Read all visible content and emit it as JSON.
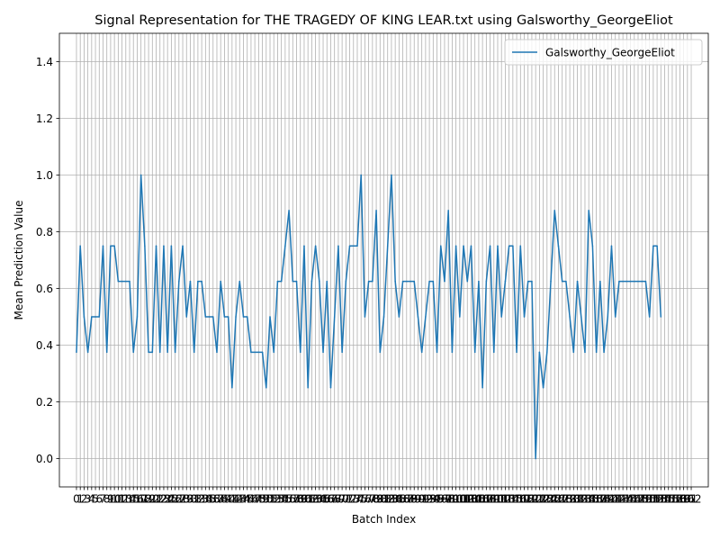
{
  "chart_data": {
    "type": "line",
    "title": "Signal Representation for THE TRAGEDY OF KING LEAR.txt using Galsworthy_GeorgeEliot",
    "xlabel": "Batch Index",
    "ylabel": "Mean Prediction Value",
    "ylim": [
      -0.1,
      1.5
    ],
    "yticks": [
      "0.0",
      "0.2",
      "0.4",
      "0.6",
      "0.8",
      "1.0",
      "1.2",
      "1.4"
    ],
    "xlim": [
      -4.5,
      166.5
    ],
    "xticks": [
      0,
      1,
      2,
      3,
      4,
      5,
      6,
      7,
      8,
      9,
      10,
      11,
      12,
      13,
      14,
      15,
      16,
      17,
      18,
      19,
      20,
      21,
      22,
      23,
      24,
      25,
      26,
      27,
      28,
      29,
      30,
      31,
      32,
      33,
      34,
      35,
      36,
      37,
      38,
      39,
      40,
      41,
      42,
      43,
      44,
      45,
      46,
      47,
      48,
      49,
      50,
      51,
      52,
      53,
      54,
      55,
      56,
      57,
      58,
      59,
      60,
      61,
      62,
      63,
      64,
      65,
      66,
      67,
      68,
      69,
      70,
      71,
      72,
      73,
      74,
      75,
      76,
      77,
      78,
      79,
      80,
      81,
      82,
      83,
      84,
      85,
      86,
      87,
      88,
      89,
      90,
      91,
      92,
      93,
      94,
      95,
      96,
      97,
      98,
      99,
      100,
      101,
      102,
      103,
      104,
      105,
      106,
      107,
      108,
      109,
      110,
      111,
      112,
      113,
      114,
      115,
      116,
      117,
      118,
      119,
      120,
      121,
      122,
      123,
      124,
      125,
      126,
      127,
      128,
      129,
      130,
      131,
      132,
      133,
      134,
      135,
      136,
      137,
      138,
      139,
      140,
      141,
      142,
      143,
      144,
      145,
      146,
      147,
      148,
      149,
      150,
      151,
      152,
      153,
      154,
      155,
      156,
      157,
      158,
      159,
      160,
      161,
      162
    ],
    "grid": true,
    "legend_position": "top-right",
    "series": [
      {
        "name": "Galsworthy_GeorgeEliot",
        "color": "#1f77b4",
        "values": [
          0.375,
          0.75,
          0.5,
          0.375,
          0.5,
          0.5,
          0.5,
          0.75,
          0.375,
          0.75,
          0.75,
          0.625,
          0.625,
          0.625,
          0.625,
          0.375,
          0.5,
          1.0,
          0.75,
          0.375,
          0.375,
          0.75,
          0.375,
          0.75,
          0.375,
          0.75,
          0.375,
          0.625,
          0.75,
          0.5,
          0.625,
          0.375,
          0.625,
          0.625,
          0.5,
          0.5,
          0.5,
          0.375,
          0.625,
          0.5,
          0.5,
          0.25,
          0.5,
          0.625,
          0.5,
          0.5,
          0.375,
          0.375,
          0.375,
          0.375,
          0.25,
          0.5,
          0.375,
          0.625,
          0.625,
          0.75,
          0.875,
          0.625,
          0.625,
          0.375,
          0.75,
          0.25,
          0.625,
          0.75,
          0.625,
          0.375,
          0.625,
          0.25,
          0.5,
          0.75,
          0.375,
          0.625,
          0.75,
          0.75,
          0.75,
          1.0,
          0.5,
          0.625,
          0.625,
          0.875,
          0.375,
          0.5,
          0.75,
          1.0,
          0.625,
          0.5,
          0.625,
          0.625,
          0.625,
          0.625,
          0.5,
          0.375,
          0.5,
          0.625,
          0.625,
          0.375,
          0.75,
          0.625,
          0.875,
          0.375,
          0.75,
          0.5,
          0.75,
          0.625,
          0.75,
          0.375,
          0.625,
          0.25,
          0.625,
          0.75,
          0.375,
          0.75,
          0.5,
          0.625,
          0.75,
          0.75,
          0.375,
          0.75,
          0.5,
          0.625,
          0.625,
          0.0,
          0.375,
          0.25,
          0.375,
          0.625,
          0.875,
          0.75,
          0.625,
          0.625,
          0.5,
          0.375,
          0.625,
          0.5,
          0.375,
          0.875,
          0.75,
          0.375,
          0.625,
          0.375,
          0.5,
          0.75,
          0.5,
          0.625,
          0.625,
          0.625,
          0.625,
          0.625,
          0.625,
          0.625,
          0.625,
          0.5,
          0.75,
          0.75,
          0.5
        ]
      }
    ]
  }
}
